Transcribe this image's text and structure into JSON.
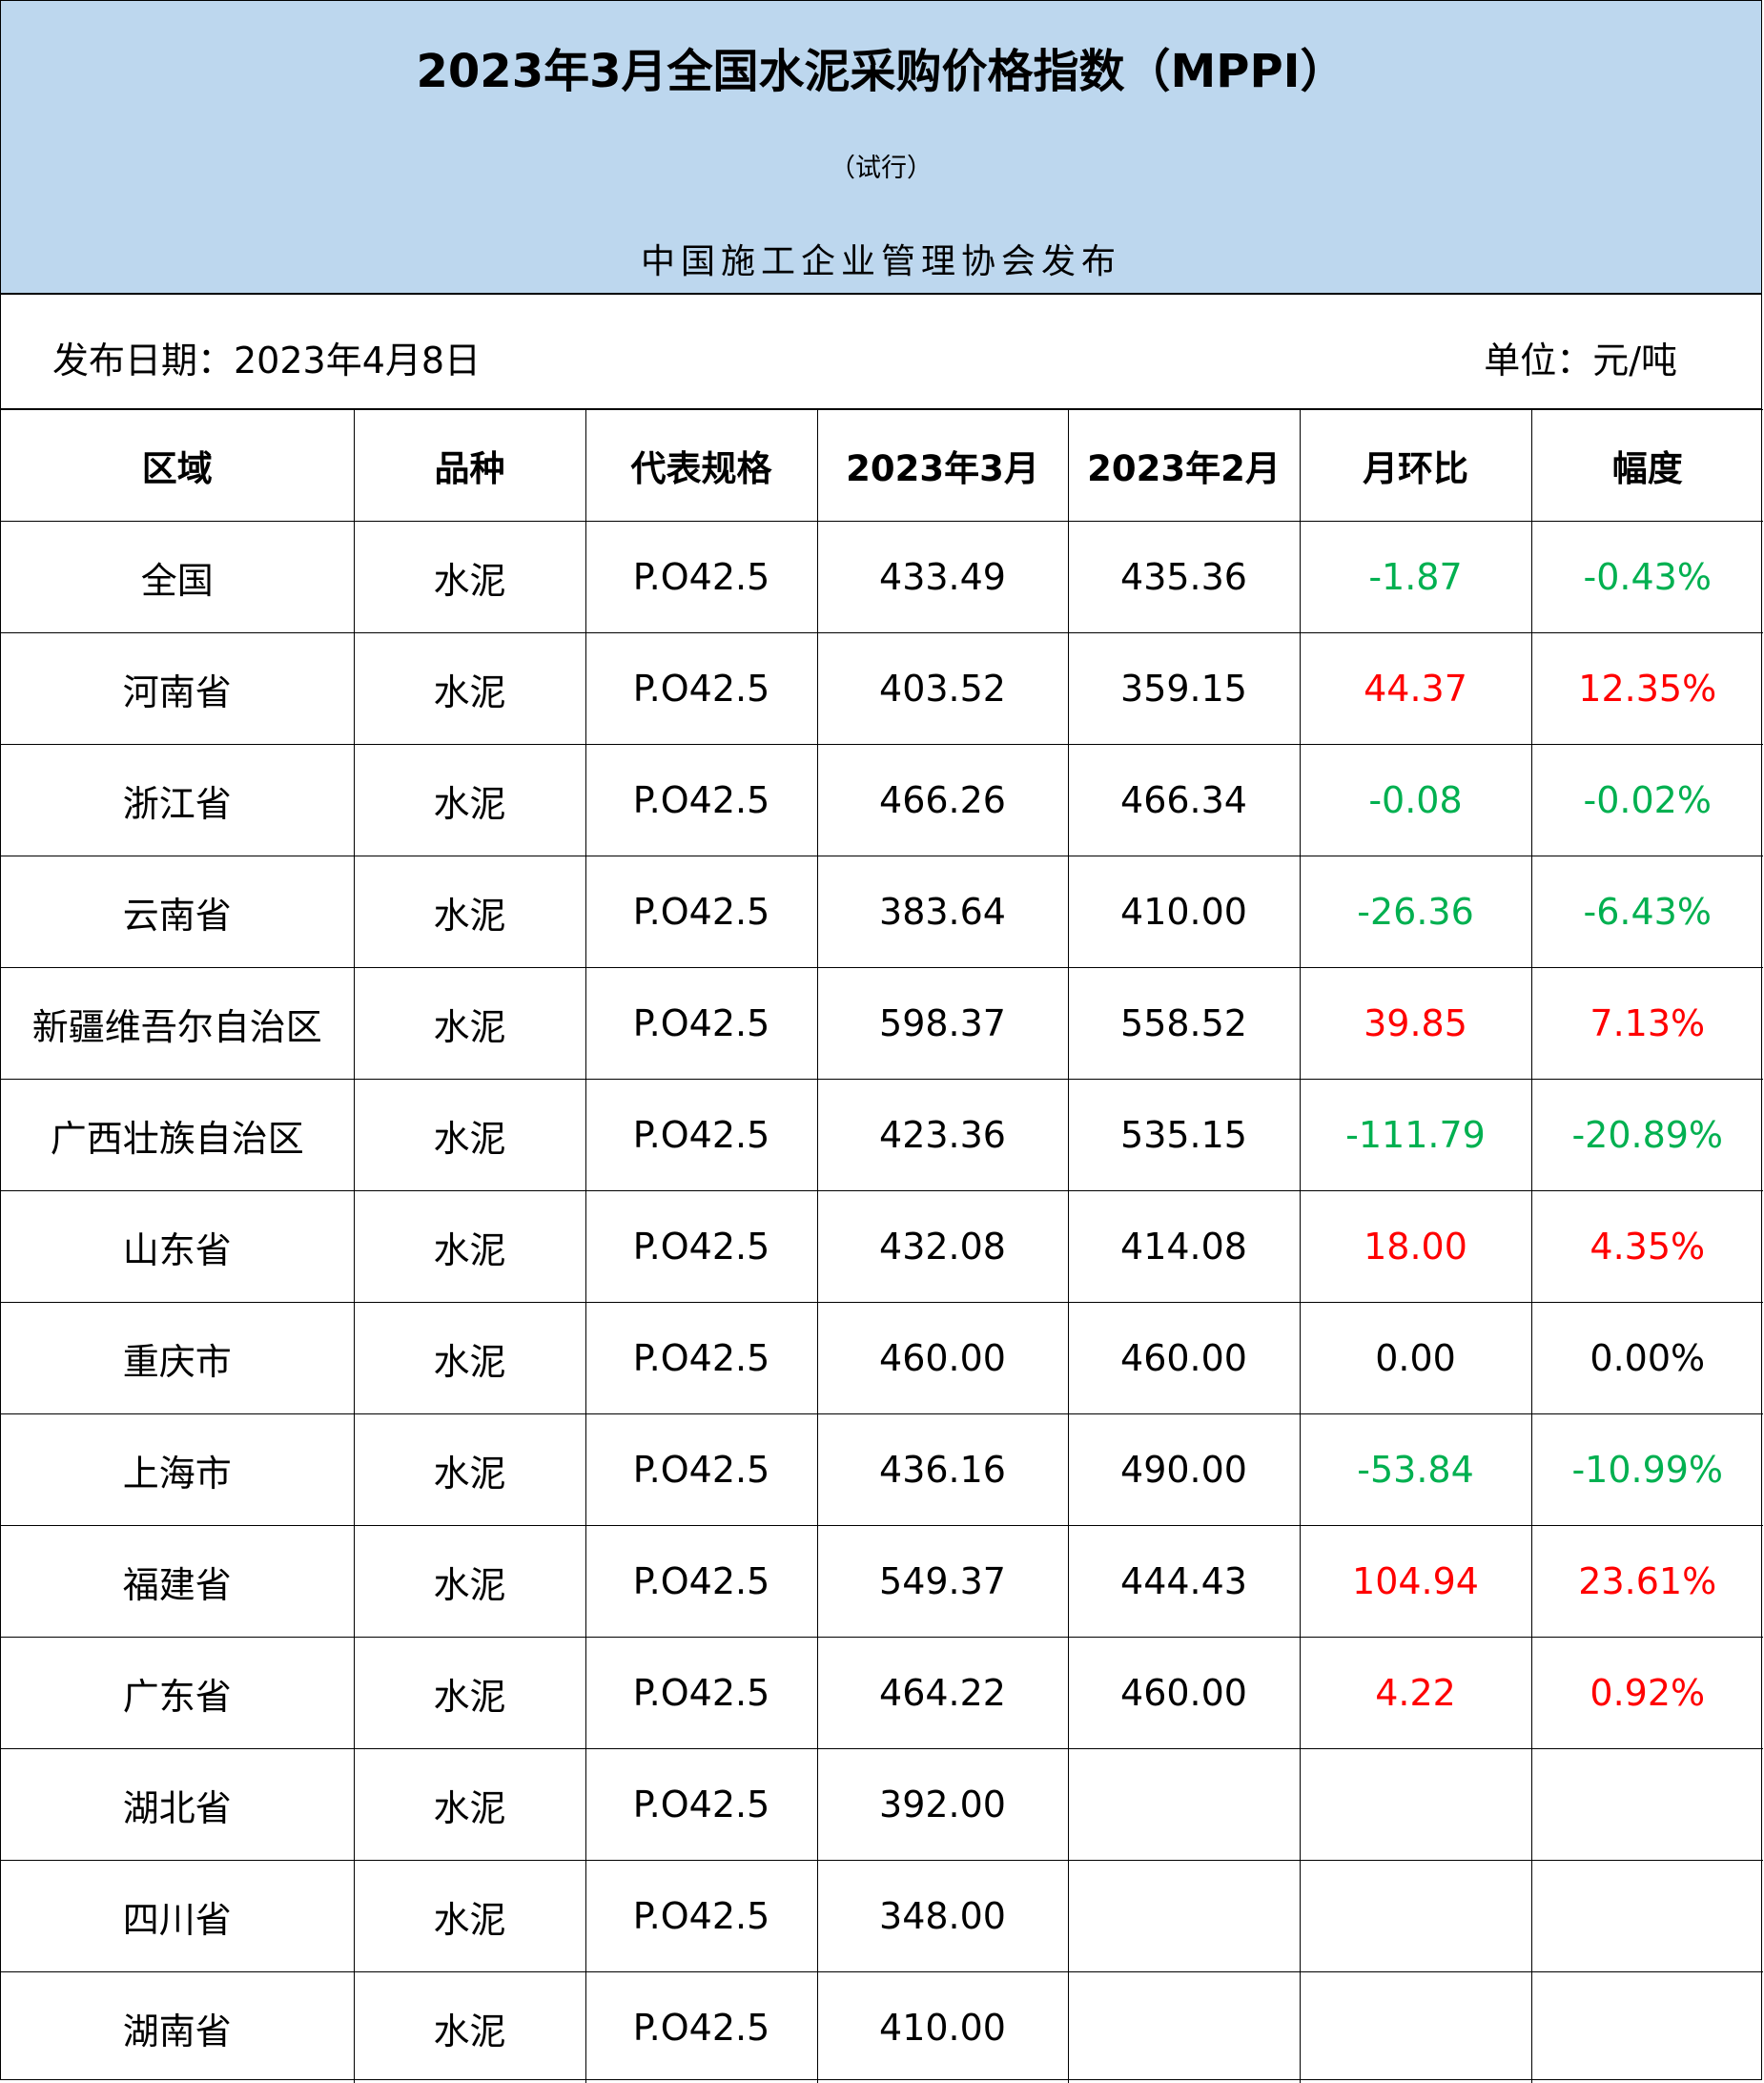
{
  "header": {
    "title": "2023年3月全国水泥采购价格指数（MPPI）",
    "subtitle": "（试行）",
    "publisher": "中国施工企业管理协会发布"
  },
  "meta": {
    "date": "发布日期：2023年4月8日",
    "unit": "单位：元/吨"
  },
  "colors": {
    "increase": "#ff0000",
    "decrease": "#00b050",
    "header_bg": "#bdd7ee"
  },
  "table": {
    "columns": [
      "区域",
      "品种",
      "代表规格",
      "2023年3月",
      "2023年2月",
      "月环比",
      "幅度"
    ],
    "rows": [
      {
        "region": "全国",
        "type": "水泥",
        "spec": "P.O42.5",
        "mar": "433.49",
        "feb": "435.36",
        "mom": "-1.87",
        "pct": "-0.43%",
        "trend": "down"
      },
      {
        "region": "河南省",
        "type": "水泥",
        "spec": "P.O42.5",
        "mar": "403.52",
        "feb": "359.15",
        "mom": "44.37",
        "pct": "12.35%",
        "trend": "up"
      },
      {
        "region": "浙江省",
        "type": "水泥",
        "spec": "P.O42.5",
        "mar": "466.26",
        "feb": "466.34",
        "mom": "-0.08",
        "pct": "-0.02%",
        "trend": "down"
      },
      {
        "region": "云南省",
        "type": "水泥",
        "spec": "P.O42.5",
        "mar": "383.64",
        "feb": "410.00",
        "mom": "-26.36",
        "pct": "-6.43%",
        "trend": "down"
      },
      {
        "region": "新疆维吾尔自治区",
        "type": "水泥",
        "spec": "P.O42.5",
        "mar": "598.37",
        "feb": "558.52",
        "mom": "39.85",
        "pct": "7.13%",
        "trend": "up"
      },
      {
        "region": "广西壮族自治区",
        "type": "水泥",
        "spec": "P.O42.5",
        "mar": "423.36",
        "feb": "535.15",
        "mom": "-111.79",
        "pct": "-20.89%",
        "trend": "down"
      },
      {
        "region": "山东省",
        "type": "水泥",
        "spec": "P.O42.5",
        "mar": "432.08",
        "feb": "414.08",
        "mom": "18.00",
        "pct": "4.35%",
        "trend": "up"
      },
      {
        "region": "重庆市",
        "type": "水泥",
        "spec": "P.O42.5",
        "mar": "460.00",
        "feb": "460.00",
        "mom": "0.00",
        "pct": "0.00%",
        "trend": "flat"
      },
      {
        "region": "上海市",
        "type": "水泥",
        "spec": "P.O42.5",
        "mar": "436.16",
        "feb": "490.00",
        "mom": "-53.84",
        "pct": "-10.99%",
        "trend": "down"
      },
      {
        "region": "福建省",
        "type": "水泥",
        "spec": "P.O42.5",
        "mar": "549.37",
        "feb": "444.43",
        "mom": "104.94",
        "pct": "23.61%",
        "trend": "up"
      },
      {
        "region": "广东省",
        "type": "水泥",
        "spec": "P.O42.5",
        "mar": "464.22",
        "feb": "460.00",
        "mom": "4.22",
        "pct": "0.92%",
        "trend": "up"
      },
      {
        "region": "湖北省",
        "type": "水泥",
        "spec": "P.O42.5",
        "mar": "392.00",
        "feb": "",
        "mom": "",
        "pct": "",
        "trend": "flat"
      },
      {
        "region": "四川省",
        "type": "水泥",
        "spec": "P.O42.5",
        "mar": "348.00",
        "feb": "",
        "mom": "",
        "pct": "",
        "trend": "flat"
      },
      {
        "region": "湖南省",
        "type": "水泥",
        "spec": "P.O42.5",
        "mar": "410.00",
        "feb": "",
        "mom": "",
        "pct": "",
        "trend": "flat"
      }
    ]
  }
}
